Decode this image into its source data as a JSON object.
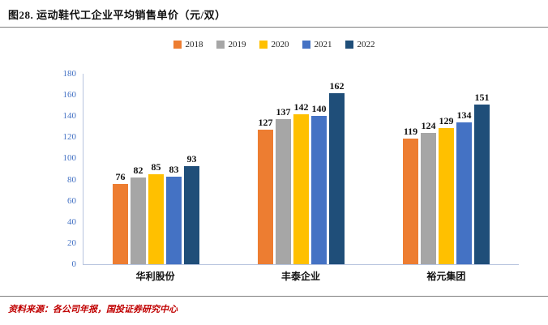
{
  "header": {
    "title": "图28. 运动鞋代工企业平均销售单价（元/双）"
  },
  "footer": {
    "source": "资料来源：各公司年报，国投证券研究中心"
  },
  "chart_data": {
    "type": "bar",
    "title": "运动鞋代工企业平均销售单价（元/双）",
    "categories": [
      "华利股份",
      "丰泰企业",
      "裕元集团"
    ],
    "series": [
      {
        "name": "2018",
        "color": "#ED7D31",
        "values": [
          76,
          127,
          119
        ]
      },
      {
        "name": "2019",
        "color": "#A6A6A6",
        "values": [
          82,
          137,
          124
        ]
      },
      {
        "name": "2020",
        "color": "#FFC000",
        "values": [
          85,
          142,
          129
        ]
      },
      {
        "name": "2021",
        "color": "#4472C4",
        "values": [
          83,
          140,
          134
        ]
      },
      {
        "name": "2022",
        "color": "#1F4E79",
        "values": [
          93,
          162,
          151
        ]
      }
    ],
    "xlabel": "",
    "ylabel": "",
    "ylim": [
      0,
      180
    ],
    "ytick_interval": 20,
    "grid": false,
    "legend_position": "top",
    "value_labels": true
  }
}
